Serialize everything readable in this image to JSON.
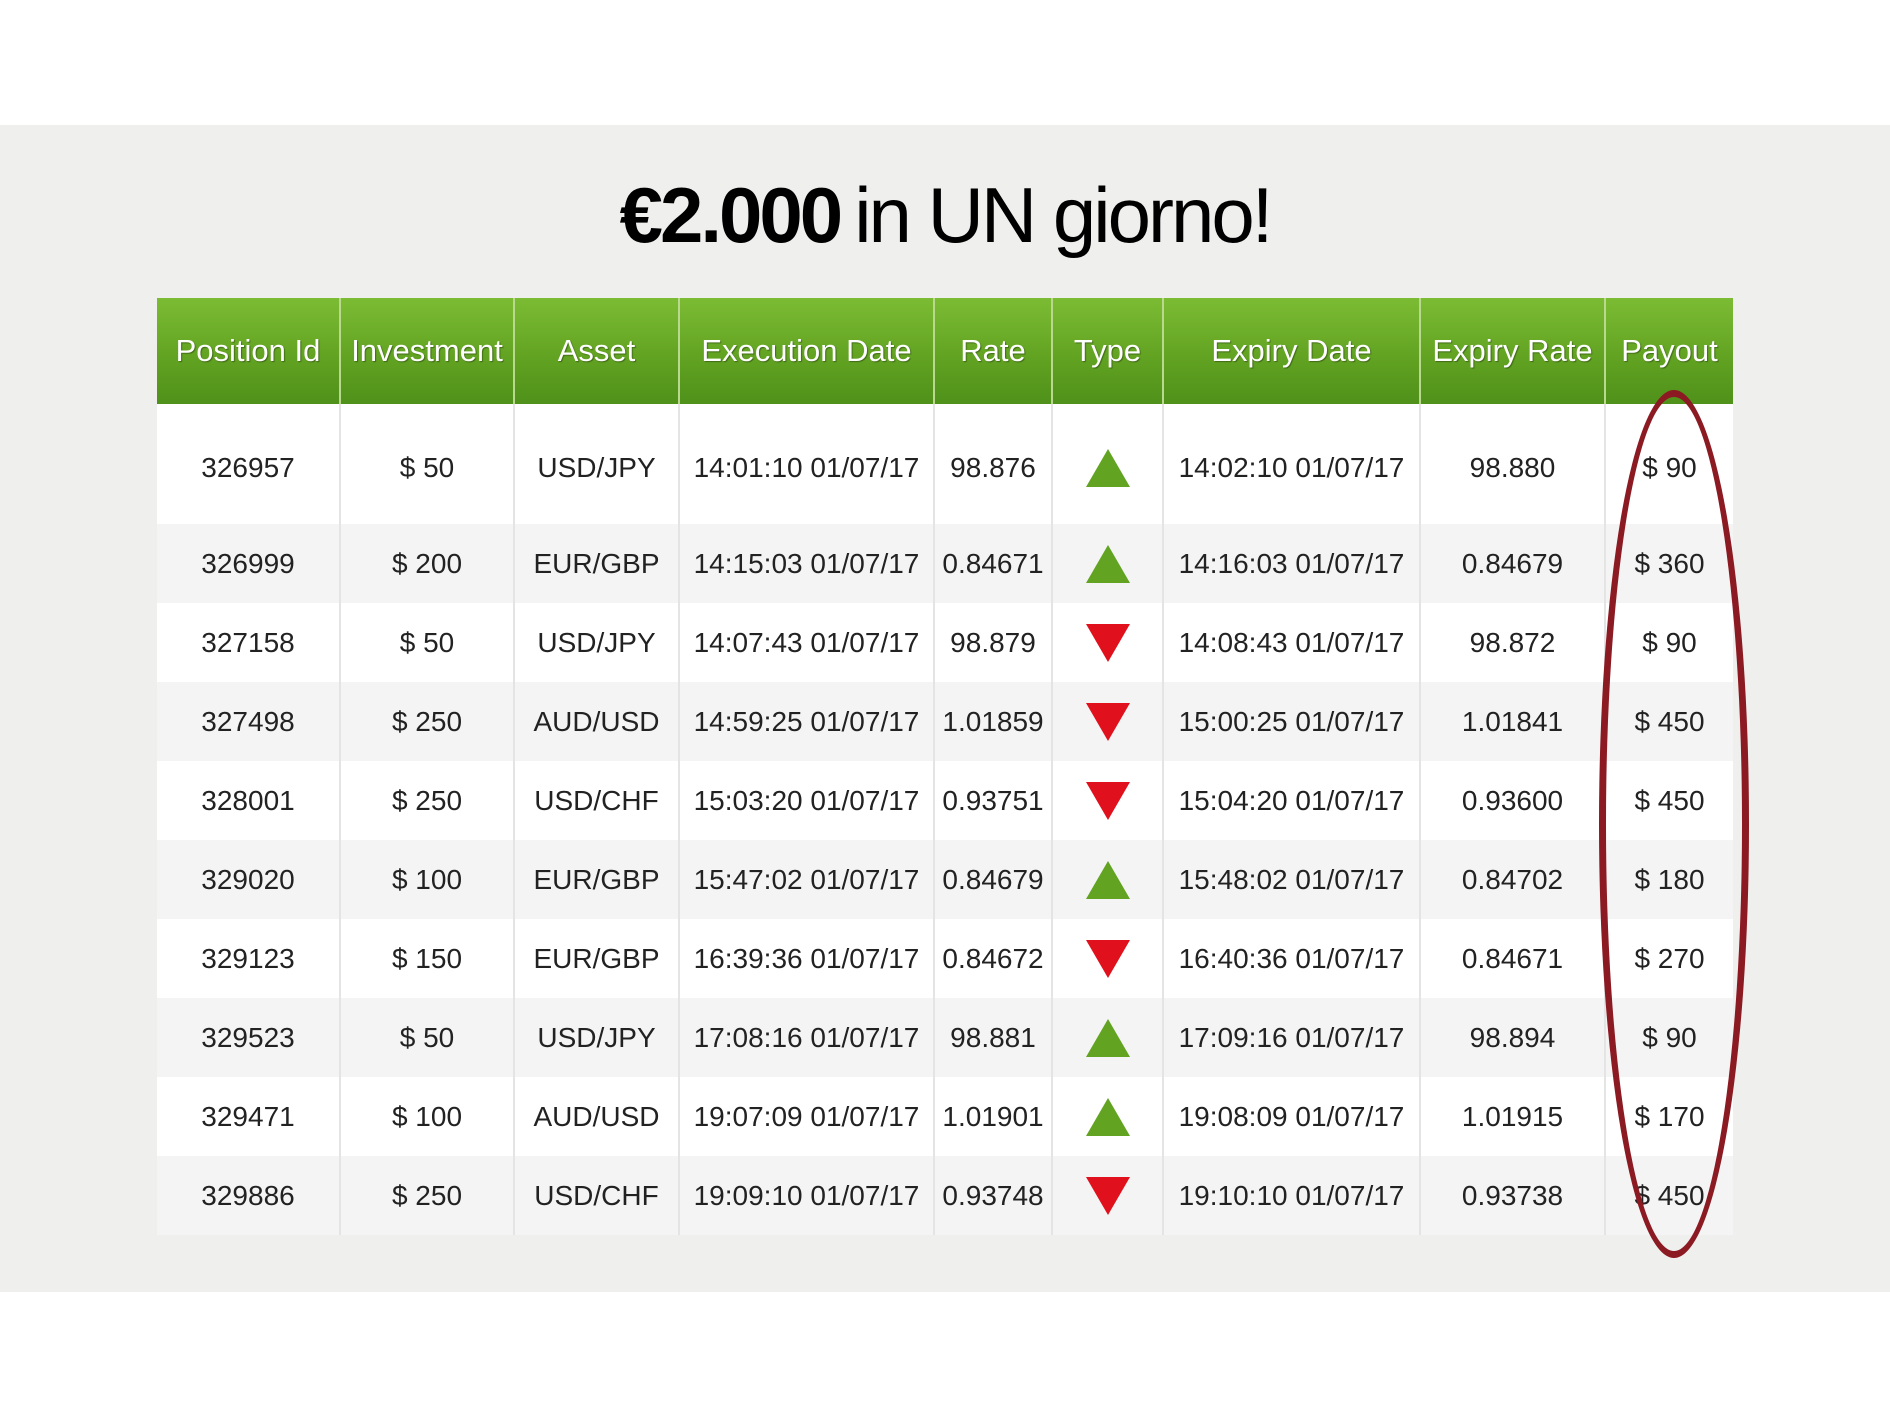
{
  "title": {
    "amount": "€2.000",
    "rest": "in UN giorno!"
  },
  "columns": [
    "Position Id",
    "Investment",
    "Asset",
    "Execution Date",
    "Rate",
    "Type",
    "Expiry Date",
    "Expiry Rate",
    "Payout"
  ],
  "colors": {
    "header_green": "#62a322",
    "up_arrow": "#62a322",
    "down_arrow": "#e0101c",
    "highlight_oval": "#8b1a22"
  },
  "rows": [
    {
      "id": "326957",
      "investment": "$ 50",
      "asset": "USD/JPY",
      "exec": "14:01:10 01/07/17",
      "rate": "98.876",
      "type": "up",
      "expiry": "14:02:10 01/07/17",
      "expiry_rate": "98.880",
      "payout": "$ 90"
    },
    {
      "id": "326999",
      "investment": "$ 200",
      "asset": "EUR/GBP",
      "exec": "14:15:03 01/07/17",
      "rate": "0.84671",
      "type": "up",
      "expiry": "14:16:03 01/07/17",
      "expiry_rate": "0.84679",
      "payout": "$ 360"
    },
    {
      "id": "327158",
      "investment": "$ 50",
      "asset": "USD/JPY",
      "exec": "14:07:43 01/07/17",
      "rate": "98.879",
      "type": "down",
      "expiry": "14:08:43 01/07/17",
      "expiry_rate": "98.872",
      "payout": "$ 90"
    },
    {
      "id": "327498",
      "investment": "$ 250",
      "asset": "AUD/USD",
      "exec": "14:59:25 01/07/17",
      "rate": "1.01859",
      "type": "down",
      "expiry": "15:00:25 01/07/17",
      "expiry_rate": "1.01841",
      "payout": "$ 450"
    },
    {
      "id": "328001",
      "investment": "$ 250",
      "asset": "USD/CHF",
      "exec": "15:03:20 01/07/17",
      "rate": "0.93751",
      "type": "down",
      "expiry": "15:04:20 01/07/17",
      "expiry_rate": "0.93600",
      "payout": "$ 450"
    },
    {
      "id": "329020",
      "investment": "$ 100",
      "asset": "EUR/GBP",
      "exec": "15:47:02 01/07/17",
      "rate": "0.84679",
      "type": "up",
      "expiry": "15:48:02 01/07/17",
      "expiry_rate": "0.84702",
      "payout": "$ 180"
    },
    {
      "id": "329123",
      "investment": "$ 150",
      "asset": "EUR/GBP",
      "exec": "16:39:36 01/07/17",
      "rate": "0.84672",
      "type": "down",
      "expiry": "16:40:36 01/07/17",
      "expiry_rate": "0.84671",
      "payout": "$ 270"
    },
    {
      "id": "329523",
      "investment": "$ 50",
      "asset": "USD/JPY",
      "exec": "17:08:16 01/07/17",
      "rate": "98.881",
      "type": "up",
      "expiry": "17:09:16 01/07/17",
      "expiry_rate": "98.894",
      "payout": "$ 90"
    },
    {
      "id": "329471",
      "investment": "$ 100",
      "asset": "AUD/USD",
      "exec": "19:07:09 01/07/17",
      "rate": "1.01901",
      "type": "up",
      "expiry": "19:08:09 01/07/17",
      "expiry_rate": "1.01915",
      "payout": "$ 170"
    },
    {
      "id": "329886",
      "investment": "$ 250",
      "asset": "USD/CHF",
      "exec": "19:09:10 01/07/17",
      "rate": "0.93748",
      "type": "down",
      "expiry": "19:10:10 01/07/17",
      "expiry_rate": "0.93738",
      "payout": "$ 450"
    }
  ]
}
